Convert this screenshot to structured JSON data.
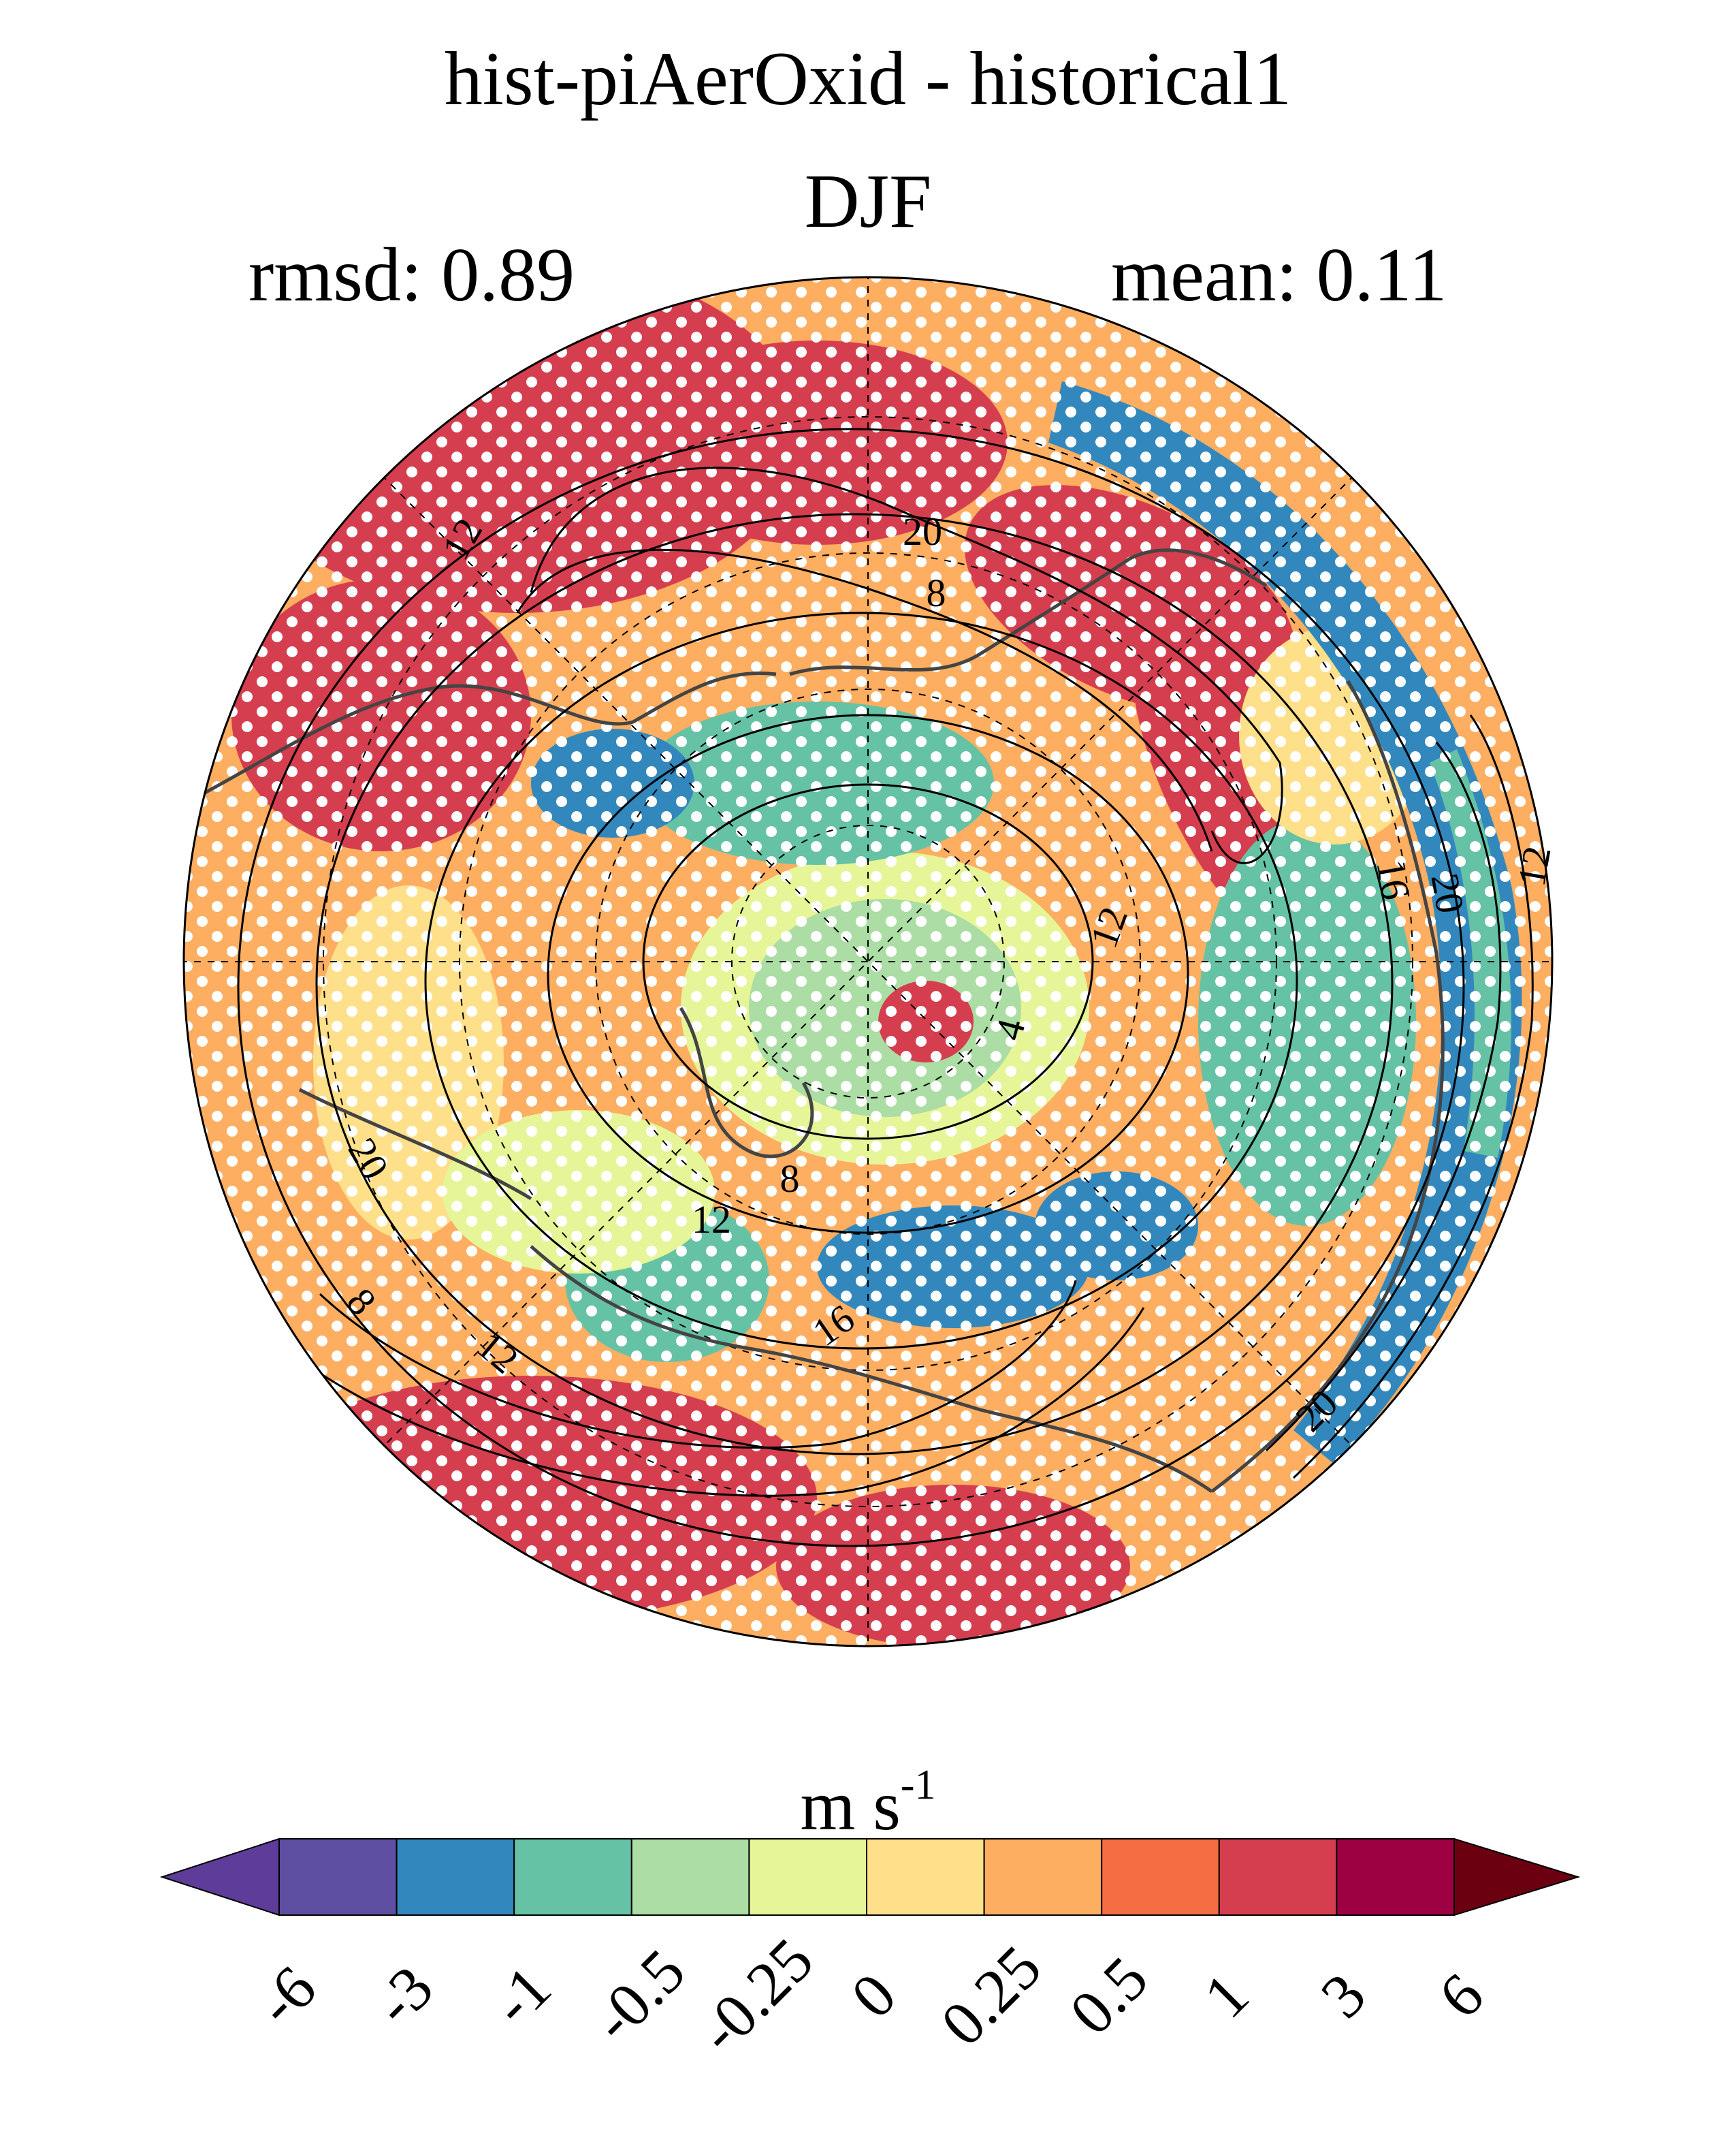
{
  "title": "hist-piAerOxid - historical1",
  "season": "DJF",
  "stats": {
    "rmsd": "rmsd: 0.89",
    "mean": "mean: 0.11"
  },
  "colorbar": {
    "unit_base": "m s",
    "unit_exp": "-1",
    "ticks": [
      "-6",
      "-3",
      "-1",
      "-0.5",
      "-0.25",
      "0",
      "0.25",
      "0.5",
      "1",
      "3",
      "6"
    ],
    "colors": [
      "#5e3c99",
      "#5e4fa2",
      "#3288bd",
      "#66c2a5",
      "#abdda4",
      "#e6f598",
      "#fee08b",
      "#fdae61",
      "#f46d43",
      "#d53e4f",
      "#9e0142",
      "#6a0010"
    ]
  },
  "contour_labels": [
    "12",
    "20",
    "8",
    "12",
    "16",
    "12",
    "20",
    "4",
    "20",
    "12",
    "8",
    "16",
    "12",
    "8",
    "20"
  ]
}
